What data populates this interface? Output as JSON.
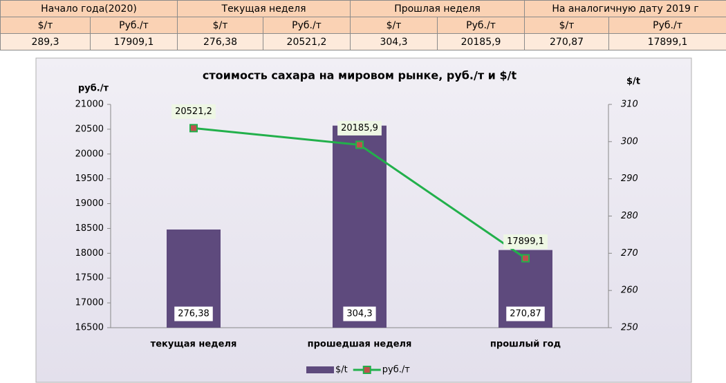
{
  "table": {
    "header_groups": [
      "Начало года(2020)",
      "Текущая неделя",
      "Прошлая неделя",
      "На аналогичную дату 2019 г"
    ],
    "subheaders": [
      "$/т",
      "Руб./т",
      "$/т",
      "Руб./т",
      "$/т",
      "Руб./т",
      "$/т",
      "Руб./т"
    ],
    "rows": [
      [
        "289,3",
        "17909,1",
        "276,38",
        "20521,2",
        "304,3",
        "20185,9",
        "270,87",
        "17899,1"
      ]
    ]
  },
  "chart_data": {
    "type": "combo",
    "title": "стоимость сахара на мировом рынке, руб./т и $/t",
    "ylabel": "руб./т",
    "y2label": "$/t",
    "categories": [
      "текущая  неделя",
      "прошедшая неделя",
      "прошлый год"
    ],
    "series": [
      {
        "name": "$/t",
        "type": "bar",
        "axis": "y2",
        "color": "#5e4a7d",
        "values": [
          276.38,
          304.3,
          270.87
        ],
        "value_labels": [
          "276,38",
          "304,3",
          "270,87"
        ]
      },
      {
        "name": "руб./т",
        "type": "line",
        "color": "#22b04b",
        "marker_color": "#c0504d",
        "values": [
          20521.2,
          20185.9,
          17899.1
        ],
        "value_labels": [
          "20521,2",
          "20185,9",
          "17899,1"
        ]
      }
    ],
    "ylim": [
      16500,
      21000
    ],
    "yticks": [
      16500,
      17000,
      17500,
      18000,
      18500,
      19000,
      19500,
      20000,
      20500,
      21000
    ],
    "y2lim": [
      250,
      310
    ],
    "y2ticks": [
      250,
      260,
      270,
      280,
      290,
      300,
      310
    ],
    "legend": "bottom"
  }
}
